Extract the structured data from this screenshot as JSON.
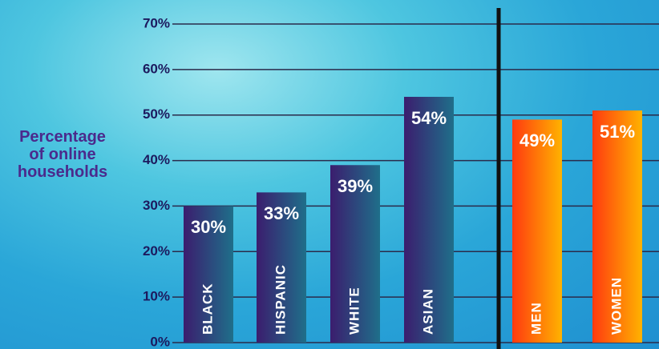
{
  "chart_data": {
    "type": "bar",
    "ylabel": "Percentage of online households",
    "categories": [
      "BLACK",
      "HISPANIC",
      "WHITE",
      "ASIAN",
      "MEN",
      "WOMEN"
    ],
    "values": [
      30,
      33,
      39,
      54,
      49,
      51
    ],
    "value_labels": [
      "30%",
      "33%",
      "39%",
      "54%",
      "49%",
      "51%"
    ],
    "colors": [
      "#3b1d6e",
      "#3b1d6e",
      "#3b1d6e",
      "#3b1d6e",
      "#ff3a10",
      "#ff3a10"
    ],
    "ylim": [
      0,
      70
    ],
    "yticks": [
      {
        "value": 0,
        "label": "0%"
      },
      {
        "value": 10,
        "label": "10%"
      },
      {
        "value": 20,
        "label": "20%"
      },
      {
        "value": 30,
        "label": "30%"
      },
      {
        "value": 40,
        "label": "40%"
      },
      {
        "value": 50,
        "label": "50%"
      },
      {
        "value": 60,
        "label": "60%"
      },
      {
        "value": 70,
        "label": "70%"
      }
    ],
    "grid": true
  }
}
